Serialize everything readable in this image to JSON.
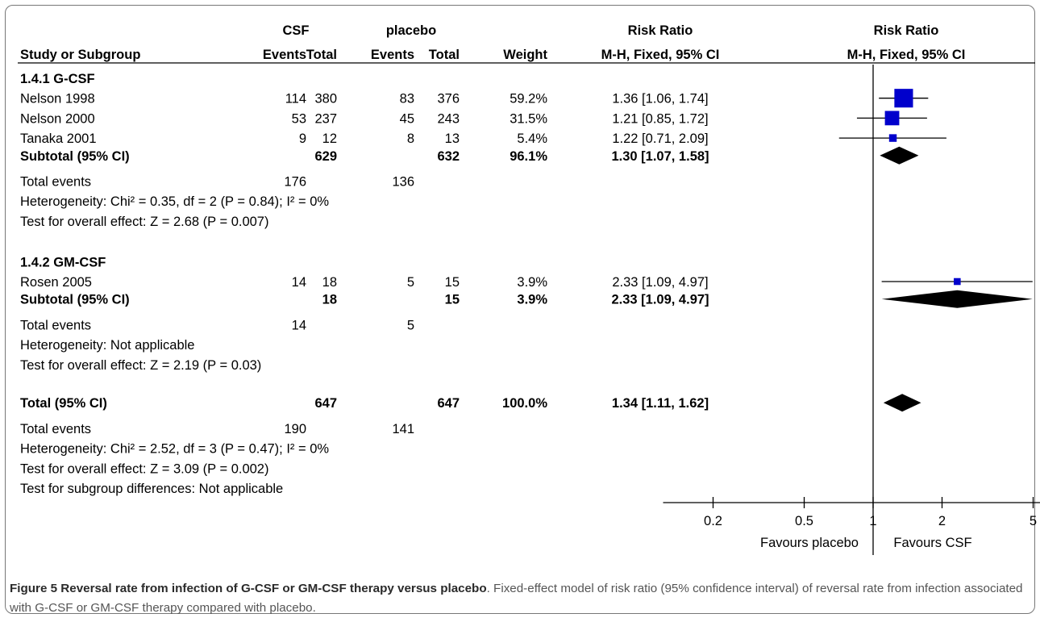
{
  "chart_data": {
    "type": "forest",
    "headers": {
      "study": "Study or Subgroup",
      "group1": "CSF",
      "group2": "placebo",
      "events": "Events",
      "total": "Total",
      "weight": "Weight",
      "rr_col_title": "Risk Ratio",
      "rr_col_sub": "M-H, Fixed, 95% CI",
      "plot_title": "Risk Ratio",
      "plot_sub": "M-H, Fixed, 95% CI"
    },
    "subgroups": [
      {
        "label": "1.4.1 G-CSF",
        "studies": [
          {
            "name": "Nelson 1998",
            "e1": "114",
            "n1": "380",
            "e2": "83",
            "n2": "376",
            "weight": "59.2%",
            "ci_text": "1.36 [1.06, 1.74]",
            "rr": 1.36,
            "lo": 1.06,
            "hi": 1.74,
            "w": 59.2
          },
          {
            "name": "Nelson 2000",
            "e1": "53",
            "n1": "237",
            "e2": "45",
            "n2": "243",
            "weight": "31.5%",
            "ci_text": "1.21 [0.85, 1.72]",
            "rr": 1.21,
            "lo": 0.85,
            "hi": 1.72,
            "w": 31.5
          },
          {
            "name": "Tanaka 2001",
            "e1": "9",
            "n1": "12",
            "e2": "8",
            "n2": "13",
            "weight": "5.4%",
            "ci_text": "1.22 [0.71, 2.09]",
            "rr": 1.22,
            "lo": 0.71,
            "hi": 2.09,
            "w": 5.4
          }
        ],
        "subtotal": {
          "label": "Subtotal (95% CI)",
          "n1": "629",
          "n2": "632",
          "weight": "96.1%",
          "ci_text": "1.30 [1.07, 1.58]",
          "rr": 1.3,
          "lo": 1.07,
          "hi": 1.58
        },
        "total_events": {
          "label": "Total events",
          "e1": "176",
          "e2": "136"
        },
        "heterogeneity": "Heterogeneity: Chi² = 0.35, df = 2 (P = 0.84); I² = 0%",
        "overall_effect": "Test for overall effect: Z = 2.68 (P = 0.007)"
      },
      {
        "label": "1.4.2 GM-CSF",
        "studies": [
          {
            "name": "Rosen 2005",
            "e1": "14",
            "n1": "18",
            "e2": "5",
            "n2": "15",
            "weight": "3.9%",
            "ci_text": "2.33 [1.09, 4.97]",
            "rr": 2.33,
            "lo": 1.09,
            "hi": 4.97,
            "w": 3.9
          }
        ],
        "subtotal": {
          "label": "Subtotal (95% CI)",
          "n1": "18",
          "n2": "15",
          "weight": "3.9%",
          "ci_text": "2.33 [1.09, 4.97]",
          "rr": 2.33,
          "lo": 1.09,
          "hi": 4.97
        },
        "total_events": {
          "label": "Total events",
          "e1": "14",
          "e2": "5"
        },
        "heterogeneity": "Heterogeneity: Not applicable",
        "overall_effect": "Test for overall effect: Z = 2.19 (P = 0.03)"
      }
    ],
    "total": {
      "label": "Total (95% CI)",
      "n1": "647",
      "n2": "647",
      "weight": "100.0%",
      "ci_text": "1.34 [1.11, 1.62]",
      "rr": 1.34,
      "lo": 1.11,
      "hi": 1.62
    },
    "total_events": {
      "label": "Total events",
      "e1": "190",
      "e2": "141"
    },
    "heterogeneity": "Heterogeneity: Chi² = 2.52, df = 3 (P = 0.47); I² = 0%",
    "overall_effect": "Test for overall effect: Z = 3.09 (P = 0.002)",
    "subgroup_diff": "Test for subgroup differences: Not applicable",
    "axis": {
      "scale": "log",
      "ticks": [
        0.2,
        0.5,
        1,
        2,
        5
      ],
      "tick_labels": [
        "0.2",
        "0.5",
        "1",
        "2",
        "5"
      ],
      "xlim": [
        0.2,
        5
      ],
      "favours_left": "Favours placebo",
      "favours_right": "Favours CSF"
    },
    "colors": {
      "square": "#0000cc",
      "diamond": "#000000",
      "line": "#000000"
    }
  },
  "caption": {
    "bold": "Figure 5 Reversal rate from infection of G-CSF or GM-CSF therapy versus placebo",
    "rest": ". Fixed-effect model of risk ratio (95% confidence interval) of reversal rate from infection associated with G-CSF or GM-CSF therapy compared with placebo."
  }
}
